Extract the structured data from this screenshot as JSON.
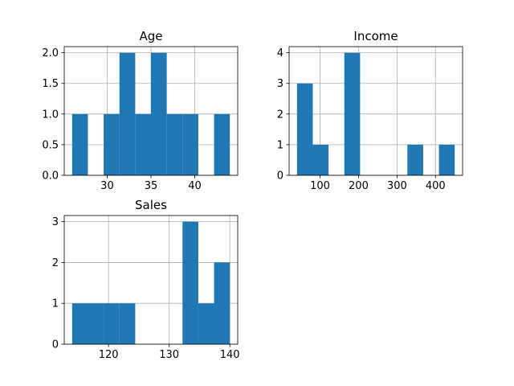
{
  "chart_data": [
    {
      "type": "bar",
      "title": "Age",
      "xlabel": "",
      "ylabel": "",
      "bins": [
        [
          26.0,
          27.8
        ],
        [
          27.8,
          29.6
        ],
        [
          29.6,
          31.4
        ],
        [
          31.4,
          33.2
        ],
        [
          33.2,
          35.0
        ],
        [
          35.0,
          36.8
        ],
        [
          36.8,
          38.6
        ],
        [
          38.6,
          40.4
        ],
        [
          40.4,
          42.2
        ],
        [
          42.2,
          44.0
        ]
      ],
      "values": [
        1,
        0,
        1,
        2,
        1,
        2,
        1,
        1,
        0,
        1
      ],
      "xlim": [
        25.1,
        44.9
      ],
      "ylim": [
        0,
        2.1
      ],
      "xticks": [
        30,
        35,
        40
      ],
      "xtick_labels": [
        "30",
        "35",
        "40"
      ],
      "yticks": [
        0,
        0.5,
        1.0,
        1.5,
        2.0
      ],
      "ytick_labels": [
        "0.0",
        "0.5",
        "1.0",
        "1.5",
        "2.0"
      ],
      "grid": true
    },
    {
      "type": "bar",
      "title": "Income",
      "xlabel": "",
      "ylabel": "",
      "bins": [
        [
          40,
          81
        ],
        [
          81,
          122
        ],
        [
          122,
          163
        ],
        [
          163,
          204
        ],
        [
          204,
          245
        ],
        [
          245,
          286
        ],
        [
          286,
          327
        ],
        [
          327,
          368
        ],
        [
          368,
          409
        ],
        [
          409,
          450
        ]
      ],
      "values": [
        3,
        1,
        0,
        4,
        0,
        0,
        0,
        1,
        0,
        1
      ],
      "xlim": [
        19.5,
        470.5
      ],
      "ylim": [
        0,
        4.2
      ],
      "xticks": [
        100,
        200,
        300,
        400
      ],
      "xtick_labels": [
        "100",
        "200",
        "300",
        "400"
      ],
      "yticks": [
        0,
        1,
        2,
        3,
        4
      ],
      "ytick_labels": [
        "0",
        "1",
        "2",
        "3",
        "4"
      ],
      "grid": true
    },
    {
      "type": "bar",
      "title": "Sales",
      "xlabel": "",
      "ylabel": "",
      "bins": [
        [
          114.0,
          116.6
        ],
        [
          116.6,
          119.2
        ],
        [
          119.2,
          121.8
        ],
        [
          121.8,
          124.4
        ],
        [
          124.4,
          127.0
        ],
        [
          127.0,
          129.6
        ],
        [
          129.6,
          132.2
        ],
        [
          132.2,
          134.8
        ],
        [
          134.8,
          137.4
        ],
        [
          137.4,
          140.0
        ]
      ],
      "values": [
        1,
        1,
        1,
        1,
        0,
        0,
        0,
        3,
        1,
        2
      ],
      "xlim": [
        112.7,
        141.3
      ],
      "ylim": [
        0,
        3.15
      ],
      "xticks": [
        120,
        130,
        140
      ],
      "xtick_labels": [
        "120",
        "130",
        "140"
      ],
      "yticks": [
        0,
        1,
        2,
        3
      ],
      "ytick_labels": [
        "0",
        "1",
        "2",
        "3"
      ],
      "grid": true
    }
  ],
  "style": {
    "bar_color": "#1f77b4",
    "grid_color": "#b0b0b0",
    "axis_color": "#000000"
  }
}
